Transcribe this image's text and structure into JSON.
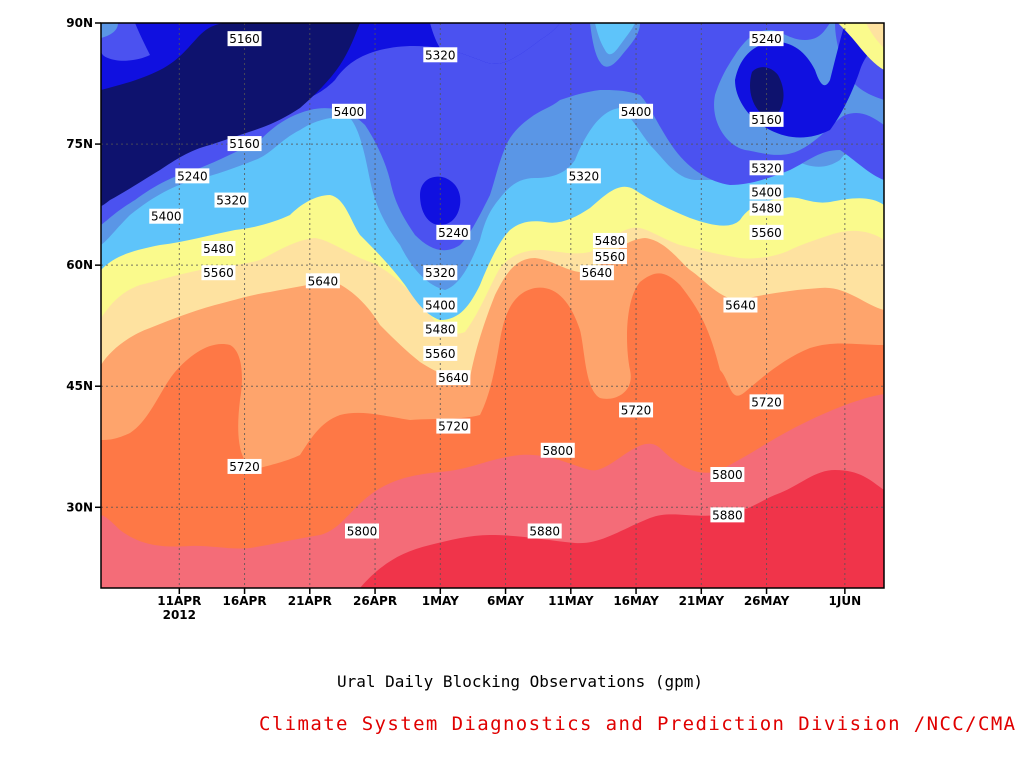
{
  "chart_data": {
    "type": "contour",
    "title": "Ural Daily Blocking Observations (gpm)",
    "credit": "Climate System Diagnostics and Prediction Division /NCC/CMA",
    "x_tick_labels": [
      "11APR",
      "16APR",
      "21APR",
      "26APR",
      "1MAY",
      "6MAY",
      "11MAY",
      "16MAY",
      "21MAY",
      "26MAY",
      "1JUN"
    ],
    "x_year_label": "2012",
    "x_range": [
      "2012-04-05",
      "2012-06-04"
    ],
    "y_tick_labels": [
      "90N",
      "75N",
      "60N",
      "45N",
      "30N"
    ],
    "y_range": [
      20,
      90
    ],
    "units": "gpm",
    "grid": true,
    "levels": [
      5160,
      5240,
      5320,
      5400,
      5480,
      5560,
      5640,
      5720,
      5800,
      5880
    ],
    "contour_labels": [
      {
        "text": "5160",
        "date": "2012-04-16",
        "lat": 88
      },
      {
        "text": "5320",
        "date": "2012-05-01",
        "lat": 86
      },
      {
        "text": "5240",
        "date": "2012-05-26",
        "lat": 88
      },
      {
        "text": "5400",
        "date": "2012-04-24",
        "lat": 79
      },
      {
        "text": "5400",
        "date": "2012-05-16",
        "lat": 79
      },
      {
        "text": "5160",
        "date": "2012-04-16",
        "lat": 75
      },
      {
        "text": "5160",
        "date": "2012-05-26",
        "lat": 78
      },
      {
        "text": "5240",
        "date": "2012-04-12",
        "lat": 71
      },
      {
        "text": "5320",
        "date": "2012-04-15",
        "lat": 68
      },
      {
        "text": "5320",
        "date": "2012-05-12",
        "lat": 71
      },
      {
        "text": "5320",
        "date": "2012-05-26",
        "lat": 72
      },
      {
        "text": "5400",
        "date": "2012-04-10",
        "lat": 66
      },
      {
        "text": "5400",
        "date": "2012-05-26",
        "lat": 69
      },
      {
        "text": "5240",
        "date": "2012-05-02",
        "lat": 64
      },
      {
        "text": "5480",
        "date": "2012-04-14",
        "lat": 62
      },
      {
        "text": "5480",
        "date": "2012-05-14",
        "lat": 63
      },
      {
        "text": "5480",
        "date": "2012-05-26",
        "lat": 67
      },
      {
        "text": "5560",
        "date": "2012-05-14",
        "lat": 61
      },
      {
        "text": "5560",
        "date": "2012-05-26",
        "lat": 64
      },
      {
        "text": "5560",
        "date": "2012-04-14",
        "lat": 59
      },
      {
        "text": "5320",
        "date": "2012-05-01",
        "lat": 59
      },
      {
        "text": "5640",
        "date": "2012-04-22",
        "lat": 58
      },
      {
        "text": "5640",
        "date": "2012-05-13",
        "lat": 59
      },
      {
        "text": "5400",
        "date": "2012-05-01",
        "lat": 55
      },
      {
        "text": "5640",
        "date": "2012-05-24",
        "lat": 55
      },
      {
        "text": "5480",
        "date": "2012-05-01",
        "lat": 52
      },
      {
        "text": "5560",
        "date": "2012-05-01",
        "lat": 49
      },
      {
        "text": "5640",
        "date": "2012-05-02",
        "lat": 46
      },
      {
        "text": "5720",
        "date": "2012-05-02",
        "lat": 40
      },
      {
        "text": "5720",
        "date": "2012-05-16",
        "lat": 42
      },
      {
        "text": "5720",
        "date": "2012-05-26",
        "lat": 43
      },
      {
        "text": "5720",
        "date": "2012-04-16",
        "lat": 35
      },
      {
        "text": "5800",
        "date": "2012-05-10",
        "lat": 37
      },
      {
        "text": "5800",
        "date": "2012-05-23",
        "lat": 34
      },
      {
        "text": "5800",
        "date": "2012-04-25",
        "lat": 27
      },
      {
        "text": "5880",
        "date": "2012-05-09",
        "lat": 27
      },
      {
        "text": "5880",
        "date": "2012-05-23",
        "lat": 29
      }
    ],
    "colors": {
      "lt5160": "#0e126e",
      "5160-5240": "#1010e0",
      "5240-5320": "#4b52f0",
      "5320-5400": "#5a96e6",
      "5400-5480": "#5ec4fa",
      "5480-5560": "#fafa8c",
      "5560-5640": "#fee2a0",
      "5640-5720": "#fea46c",
      "5720-5800": "#fe7846",
      "5800-5880": "#f46c78",
      "gt5880": "#f0344a"
    }
  }
}
